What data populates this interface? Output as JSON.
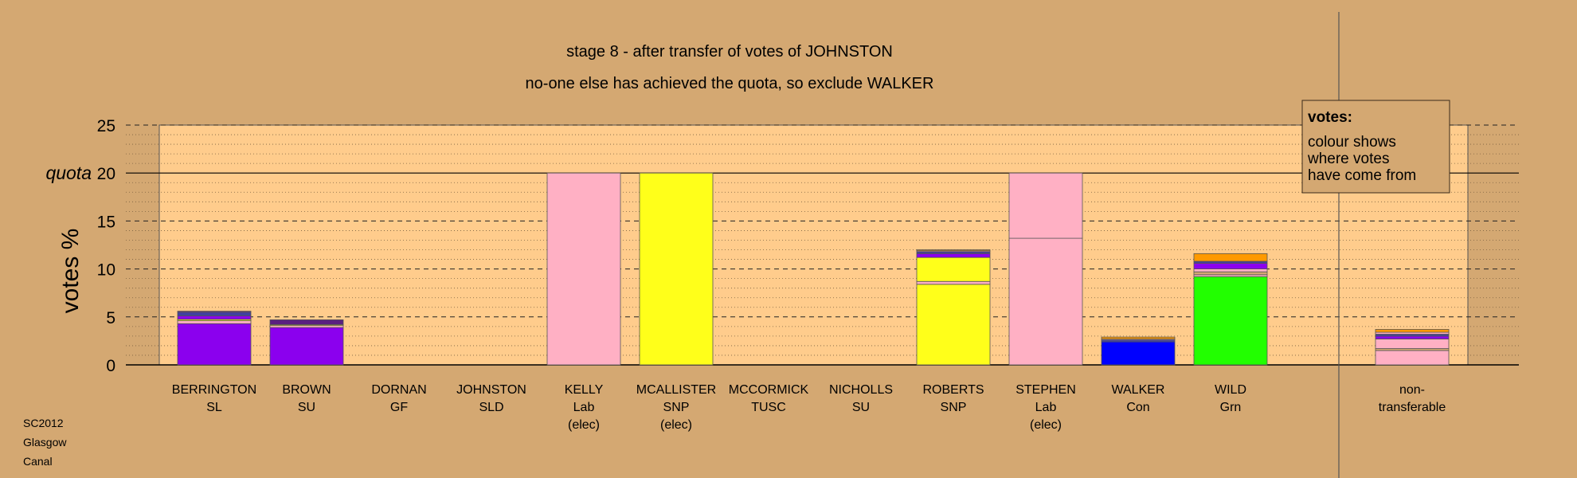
{
  "chart_data": {
    "type": "bar",
    "stacked": true,
    "title": "stage 8 - after transfer of votes of JOHNSTON",
    "subtitle": "no-one else has achieved the quota, so exclude WALKER",
    "ylabel": "votes %",
    "ylim": [
      0,
      25
    ],
    "yticks": [
      0,
      5,
      10,
      15,
      20,
      25
    ],
    "quota": 20,
    "quota_label": "quota",
    "grid": true,
    "legend": {
      "position": "top-right",
      "title": "votes:",
      "lines": [
        "colour shows",
        "where votes",
        "have come from"
      ]
    },
    "categories": [
      {
        "name": "BERRINGTON",
        "party": "SL",
        "note": "",
        "segments": [
          {
            "color": "#8b00ee",
            "value": 4.3
          },
          {
            "color": "#ffb0c4",
            "value": 0.3
          },
          {
            "color": "#ffff1a",
            "value": 0.15
          },
          {
            "color": "#8b00ee",
            "value": 0.35
          },
          {
            "color": "#4040a0",
            "value": 0.4
          },
          {
            "color": "#7020a0",
            "value": 0.1
          }
        ]
      },
      {
        "name": "BROWN",
        "party": "SU",
        "note": "",
        "segments": [
          {
            "color": "#8b00ee",
            "value": 3.9
          },
          {
            "color": "#ffb0c4",
            "value": 0.2
          },
          {
            "color": "#ffff1a",
            "value": 0.1
          },
          {
            "color": "#5a2080",
            "value": 0.5
          }
        ]
      },
      {
        "name": "DORNAN",
        "party": "GF",
        "note": "",
        "segments": []
      },
      {
        "name": "JOHNSTON",
        "party": "SLD",
        "note": "",
        "segments": []
      },
      {
        "name": "KELLY",
        "party": "Lab",
        "note": "(elec)",
        "segments": [
          {
            "color": "#ffb0c4",
            "value": 20
          }
        ]
      },
      {
        "name": "MCALLISTER",
        "party": "SNP",
        "note": "(elec)",
        "segments": [
          {
            "color": "#ffff1a",
            "value": 20
          }
        ]
      },
      {
        "name": "MCCORMICK",
        "party": "TUSC",
        "note": "",
        "segments": []
      },
      {
        "name": "NICHOLLS",
        "party": "SU",
        "note": "",
        "segments": []
      },
      {
        "name": "ROBERTS",
        "party": "SNP",
        "note": "",
        "segments": [
          {
            "color": "#ffff1a",
            "value": 8.4
          },
          {
            "color": "#ffb0c4",
            "value": 0.3
          },
          {
            "color": "#ffff1a",
            "value": 2.5
          },
          {
            "color": "#8b00ee",
            "value": 0.4
          },
          {
            "color": "#4040a0",
            "value": 0.2
          },
          {
            "color": "#ffb0c4",
            "value": 0.1
          },
          {
            "color": "#ff9900",
            "value": 0.1
          }
        ]
      },
      {
        "name": "STEPHEN",
        "party": "Lab",
        "note": "(elec)",
        "segments": [
          {
            "color": "#ffb0c4",
            "value": 13.2
          },
          {
            "color": "#ffb0c4",
            "value": 6.8
          }
        ]
      },
      {
        "name": "WALKER",
        "party": "Con",
        "note": "",
        "segments": [
          {
            "color": "#0000ff",
            "value": 2.4
          },
          {
            "color": "#4040a0",
            "value": 0.2
          },
          {
            "color": "#ffb0c4",
            "value": 0.1
          },
          {
            "color": "#ff9900",
            "value": 0.2
          }
        ]
      },
      {
        "name": "WILD",
        "party": "Grn",
        "note": "",
        "segments": [
          {
            "color": "#22ff00",
            "value": 9.2
          },
          {
            "color": "#ffb0c4",
            "value": 0.2
          },
          {
            "color": "#d4a872",
            "value": 0.3
          },
          {
            "color": "#ffb0c4",
            "value": 0.3
          },
          {
            "color": "#8b00ee",
            "value": 0.6
          },
          {
            "color": "#4040a0",
            "value": 0.2
          },
          {
            "color": "#ff9900",
            "value": 0.8
          }
        ]
      }
    ],
    "nontransferable": {
      "label_lines": [
        "non-",
        "transferable"
      ],
      "segments": [
        {
          "color": "#ffb0c4",
          "value": 1.5
        },
        {
          "color": "#d4a872",
          "value": 0.2
        },
        {
          "color": "#ffb0c4",
          "value": 1.0
        },
        {
          "color": "#8b00ee",
          "value": 0.3
        },
        {
          "color": "#4040a0",
          "value": 0.2
        },
        {
          "color": "#ffb0c4",
          "value": 0.2
        },
        {
          "color": "#ff9900",
          "value": 0.3
        }
      ]
    }
  },
  "footer": [
    "SC2012",
    "Glasgow",
    "Canal"
  ]
}
